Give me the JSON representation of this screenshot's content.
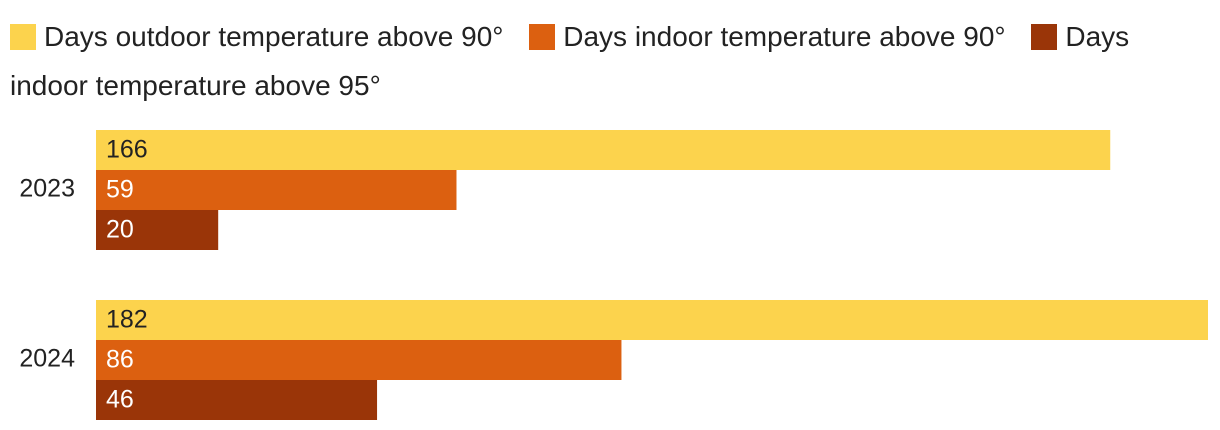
{
  "chart_data": {
    "type": "bar",
    "orientation": "horizontal",
    "categories": [
      "2023",
      "2024"
    ],
    "series": [
      {
        "name": "Days outdoor temperature above 90°",
        "color": "#fcd34d",
        "label_color": "#222222",
        "values": [
          166,
          182
        ]
      },
      {
        "name": "Days indoor temperature above 90°",
        "color": "#dc6010",
        "label_color": "#ffffff",
        "values": [
          59,
          86
        ]
      },
      {
        "name": "Days indoor temperature above 95°",
        "color": "#9a3508",
        "label_color": "#ffffff",
        "values": [
          20,
          46
        ]
      }
    ],
    "xlim": [
      0,
      182
    ],
    "grid": false,
    "legend_position": "top"
  }
}
